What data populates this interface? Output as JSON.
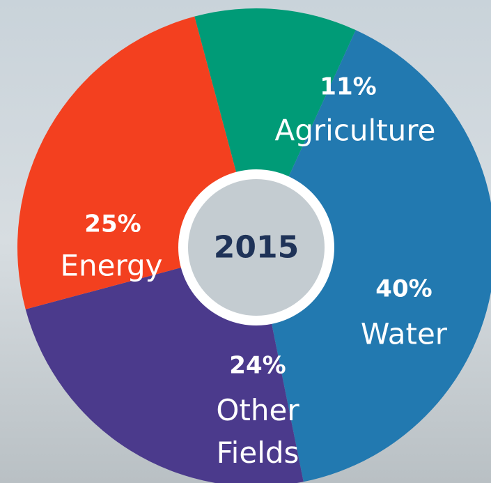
{
  "chart_data": {
    "type": "pie",
    "center_label": "2015",
    "categories": [
      "Agriculture",
      "Water",
      "Other Fields",
      "Energy"
    ],
    "values": [
      11,
      40,
      24,
      25
    ],
    "value_labels": [
      "11%",
      "40%",
      "24%",
      "25%"
    ],
    "colors": [
      "#009b77",
      "#2279b0",
      "#4b3a8c",
      "#f3401f"
    ]
  }
}
